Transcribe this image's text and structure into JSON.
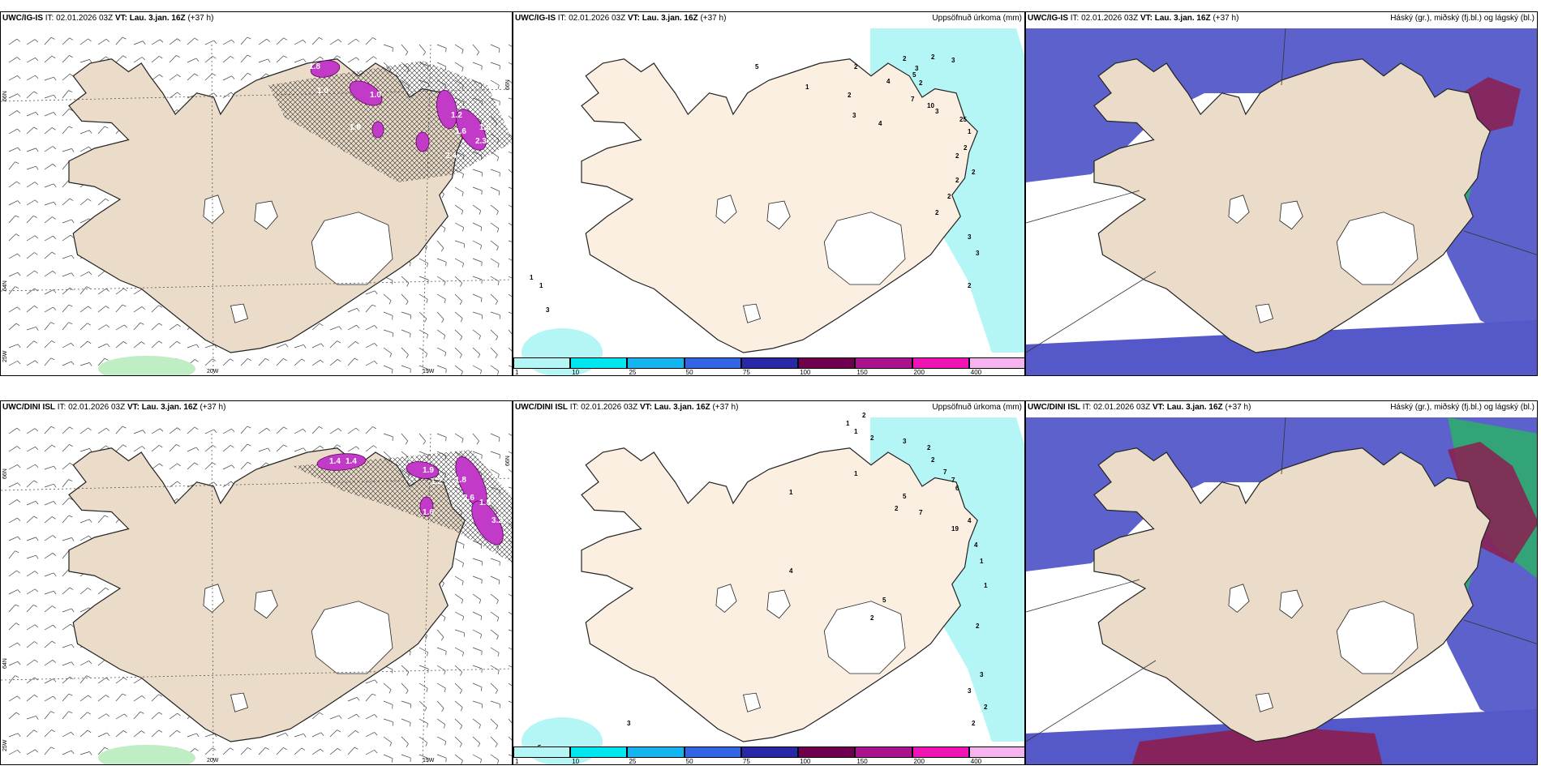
{
  "panels": [
    {
      "id": "r1c1",
      "model": "UWC/IG-IS",
      "it_label": "IT:",
      "it": "02.01.2026 03Z",
      "vt_label": "VT:",
      "vt": "Lau. 3.jan. 16Z",
      "lead": "(+37 h)",
      "right_title": "",
      "axis_labels": {
        "lat_left_top": "66N",
        "lat_left_mid": "64N",
        "lon_left": "25W",
        "lon_mid": "20W",
        "lon_right": "15W",
        "lat_right": "66N"
      },
      "values": [
        "1.0",
        "1.0",
        "1.8",
        "1.2",
        "1.6",
        "2.3",
        "1.6",
        "2.4",
        "1.8"
      ]
    },
    {
      "id": "r1c2",
      "model": "UWC/IG-IS",
      "it_label": "IT:",
      "it": "02.01.2026 03Z",
      "vt_label": "VT:",
      "vt": "Lau. 3.jan. 16Z",
      "lead": "(+37 h)",
      "right_title": "Uppsöfnuð úrkoma (mm)",
      "values": [
        "2",
        "3",
        "2",
        "3",
        "5",
        "2",
        "1",
        "2",
        "3",
        "4",
        "5",
        "2",
        "7",
        "10",
        "4",
        "3",
        "25",
        "1",
        "2",
        "2",
        "2",
        "2",
        "2",
        "2",
        "3",
        "3",
        "2",
        "1",
        "1",
        "3"
      ]
    },
    {
      "id": "r1c3",
      "model": "UWC/IG-IS",
      "it_label": "IT:",
      "it": "02.01.2026 03Z",
      "vt_label": "VT:",
      "vt": "Lau. 3.jan. 16Z",
      "lead": "(+37 h)",
      "right_title": "Háský (gr.), miðský (fj.bl.) og lágský (bl.)"
    },
    {
      "id": "r2c1",
      "model": "UWC/DINI ISL",
      "it_label": "IT:",
      "it": "02.01.2026 03Z",
      "vt_label": "VT:",
      "vt": "Lau. 3.jan. 16Z",
      "lead": "(+37 h)",
      "right_title": "",
      "axis_labels": {
        "lat_left_top": "66N",
        "lat_left_mid": "64N",
        "lon_left": "25W",
        "lon_mid": "20W",
        "lon_right": "15W",
        "lat_right": "66N"
      },
      "values": [
        "1.4",
        "1.4",
        "2.7",
        "1.9",
        "1.2",
        "1.8",
        "2.6",
        "1.8",
        "3.2",
        "1.6"
      ]
    },
    {
      "id": "r2c2",
      "model": "UWC/DINI ISL",
      "it_label": "IT:",
      "it": "02.01.2026 03Z",
      "vt_label": "VT:",
      "vt": "Lau. 3.jan. 16Z",
      "lead": "(+37 h)",
      "right_title": "Uppsöfnuð úrkoma (mm)",
      "values": [
        "2",
        "1",
        "1",
        "2",
        "3",
        "2",
        "2",
        "7",
        "7",
        "6",
        "1",
        "1",
        "5",
        "2",
        "7",
        "19",
        "4",
        "4",
        "1",
        "1",
        "2",
        "4",
        "5",
        "2",
        "3",
        "3",
        "2",
        "2",
        "5",
        "3"
      ]
    },
    {
      "id": "r2c3",
      "model": "UWC/DINI ISL",
      "it_label": "IT:",
      "it": "02.01.2026 03Z",
      "vt_label": "VT:",
      "vt": "Lau. 3.jan. 16Z",
      "lead": "(+37 h)",
      "right_title": "Háský (gr.), miðský (fj.bl.) og lágský (bl.)"
    }
  ],
  "colorbar": {
    "labels": [
      "1",
      "10",
      "25",
      "50",
      "75",
      "100",
      "150",
      "200",
      "400"
    ],
    "colors": [
      "#b4f5f5",
      "#00e6f0",
      "#14b4ee",
      "#3264e6",
      "#2828a8",
      "#6e0050",
      "#aa1490",
      "#f014b4",
      "#f5b4f0"
    ]
  },
  "colors": {
    "land": "#eadcc8",
    "land_precip": "#fbefe2",
    "ice": "#ffffff",
    "cloud_low": "#5458c8",
    "cloud_mid": "#2ab06a",
    "cloud_high": "#8c1e50",
    "precip_light": "#b4f5f5",
    "snow_magenta": "#c23bc8"
  }
}
